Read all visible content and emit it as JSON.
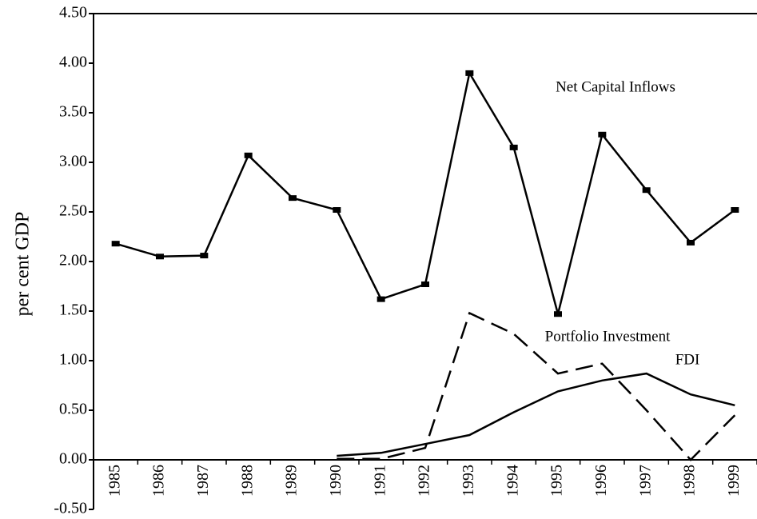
{
  "chart_data": {
    "type": "line",
    "y_label": "per cent GDP",
    "categories": [
      "1985",
      "1986",
      "1987",
      "1988",
      "1989",
      "1990",
      "1991",
      "1992",
      "1993",
      "1994",
      "1995",
      "1996",
      "1997",
      "1998",
      "1999"
    ],
    "series": [
      {
        "name": "Net Capital Inflows",
        "color": "#000000",
        "style": "solid",
        "markers": true,
        "values": [
          2.18,
          2.05,
          2.06,
          3.07,
          2.64,
          2.52,
          1.62,
          1.77,
          3.9,
          3.15,
          1.47,
          3.28,
          2.72,
          2.19,
          2.52
        ]
      },
      {
        "name": "Portfolio Investment",
        "color": "#000000",
        "style": "dashed",
        "markers": false,
        "values": [
          null,
          null,
          null,
          null,
          null,
          0.01,
          0.01,
          0.12,
          1.48,
          1.27,
          0.87,
          0.97,
          0.5,
          0.0,
          0.45
        ]
      },
      {
        "name": "FDI",
        "color": "#000000",
        "style": "solid",
        "markers": false,
        "values": [
          null,
          null,
          null,
          null,
          null,
          0.04,
          0.07,
          0.16,
          0.25,
          0.48,
          0.69,
          0.8,
          0.87,
          0.66,
          0.55
        ]
      }
    ],
    "ylim": [
      -0.5,
      4.5
    ],
    "yticks": [
      {
        "value": -0.5,
        "label": "-0.50"
      },
      {
        "value": 0,
        "label": "0.00"
      },
      {
        "value": 0.5,
        "label": "0.50"
      },
      {
        "value": 1,
        "label": "1.00"
      },
      {
        "value": 1.5,
        "label": "1.50"
      },
      {
        "value": 2,
        "label": "2.00"
      },
      {
        "value": 2.5,
        "label": "2.50"
      },
      {
        "value": 3,
        "label": "3.00"
      },
      {
        "value": 3.5,
        "label": "3.50"
      },
      {
        "value": 4,
        "label": "4.00"
      },
      {
        "value": 4.5,
        "label": "4.50"
      }
    ],
    "grid": false
  }
}
